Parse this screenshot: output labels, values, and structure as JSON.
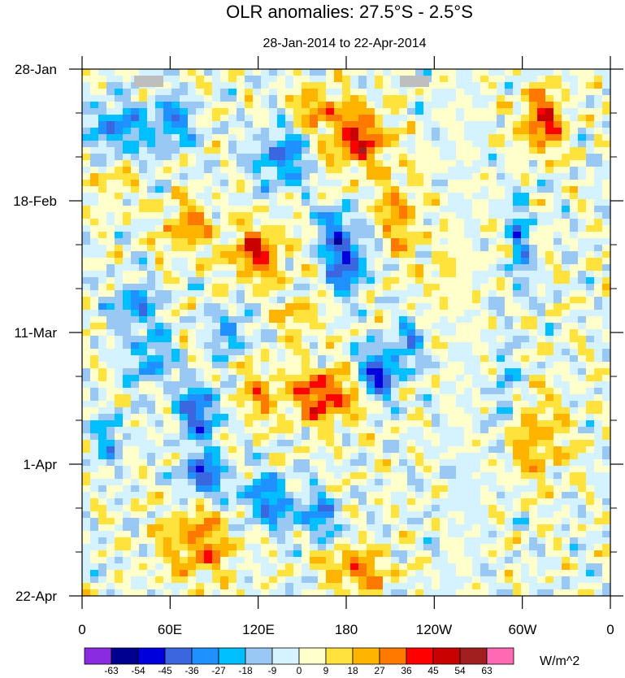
{
  "chart_data": {
    "type": "heatmap",
    "title": "OLR anomalies: 27.5°S - 2.5°S",
    "subtitle": "28-Jan-2014 to 22-Apr-2014",
    "x_axis": {
      "quantity": "longitude",
      "range": [
        "0",
        "0"
      ],
      "tick_labels": [
        "0",
        "60E",
        "120E",
        "180",
        "120W",
        "60W",
        "0"
      ]
    },
    "y_axis": {
      "quantity": "date",
      "range": [
        "2014-01-28",
        "2014-04-22"
      ],
      "tick_labels": [
        "28-Jan",
        "18-Feb",
        "11-Mar",
        "1-Apr",
        "22-Apr"
      ],
      "direction": "time increases downward"
    },
    "colorbar": {
      "units": "W/m^2",
      "levels": [
        -63,
        -54,
        -45,
        -36,
        -27,
        -18,
        -9,
        0,
        9,
        18,
        27,
        36,
        45,
        54,
        63
      ],
      "colors": [
        "#8a2be2",
        "#000090",
        "#0000dd",
        "#3a66e0",
        "#1e90ff",
        "#00bfff",
        "#9ac8f5",
        "#d4f2ff",
        "#ffffcc",
        "#ffe23c",
        "#ffb400",
        "#ff7800",
        "#ff0000",
        "#c80000",
        "#a01e1e",
        "#ff69b4"
      ]
    },
    "missing_color": "#bebebe",
    "grid": false,
    "legend": "colorbar bottom"
  }
}
